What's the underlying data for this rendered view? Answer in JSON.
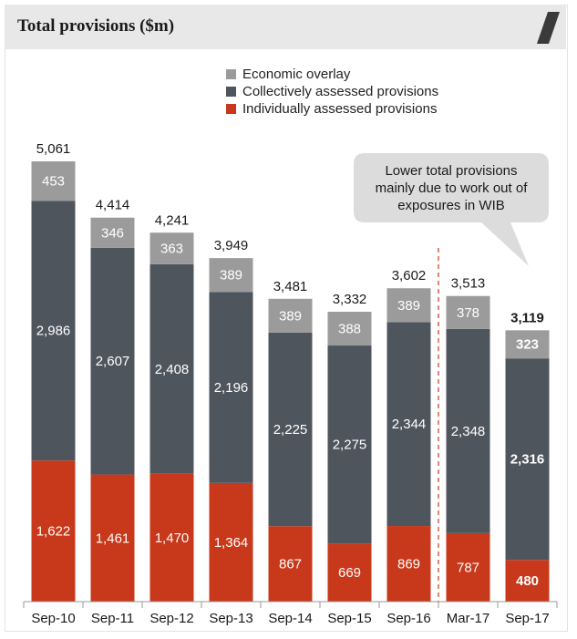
{
  "page_title": "Total provisions ($m)",
  "callout_text": [
    "Lower total provisions",
    "mainly due to work out of",
    "exposures in WIB"
  ],
  "colors": {
    "economic_overlay": "#9b9b9b",
    "collective": "#4f555d",
    "individual": "#c8381a",
    "callout_bg": "#dcdcdc",
    "divider": "#c8381a"
  },
  "chart_data": {
    "type": "bar",
    "stacked": true,
    "title": "Total provisions ($m)",
    "categories": [
      "Sep-10",
      "Sep-11",
      "Sep-12",
      "Sep-13",
      "Sep-14",
      "Sep-15",
      "Sep-16",
      "Mar-17",
      "Sep-17"
    ],
    "series": [
      {
        "name": "Individually assessed provisions",
        "values": [
          1622,
          1461,
          1470,
          1364,
          867,
          669,
          869,
          787,
          480
        ]
      },
      {
        "name": "Collectively assessed provisions",
        "values": [
          2986,
          2607,
          2408,
          2196,
          2225,
          2275,
          2344,
          2348,
          2316
        ]
      },
      {
        "name": "Economic overlay",
        "values": [
          453,
          346,
          363,
          389,
          389,
          388,
          389,
          378,
          323
        ]
      }
    ],
    "value_labels": {
      "individual": [
        "1,622",
        "1,461",
        "1,470",
        "1,364",
        "867",
        "669",
        "869",
        "787",
        "480"
      ],
      "collective": [
        "2,986",
        "2,607",
        "2,408",
        "2,196",
        "2,225",
        "2,275",
        "2,344",
        "2,348",
        "2,316"
      ],
      "overlay": [
        "453",
        "346",
        "363",
        "389",
        "389",
        "388",
        "389",
        "378",
        "323"
      ]
    },
    "totals": [
      "5,061",
      "4,414",
      "4,241",
      "3,949",
      "3,481",
      "3,332",
      "3,602",
      "3,513",
      "3,119"
    ],
    "legend_order": [
      "Economic overlay",
      "Collectively assessed provisions",
      "Individually assessed provisions"
    ],
    "legend_placement": "top-center",
    "highlighted_category": "Sep-17",
    "divider_before_category": "Mar-17",
    "ylim": [
      0,
      5061
    ],
    "grid": false,
    "xlabel": "",
    "ylabel": ""
  }
}
